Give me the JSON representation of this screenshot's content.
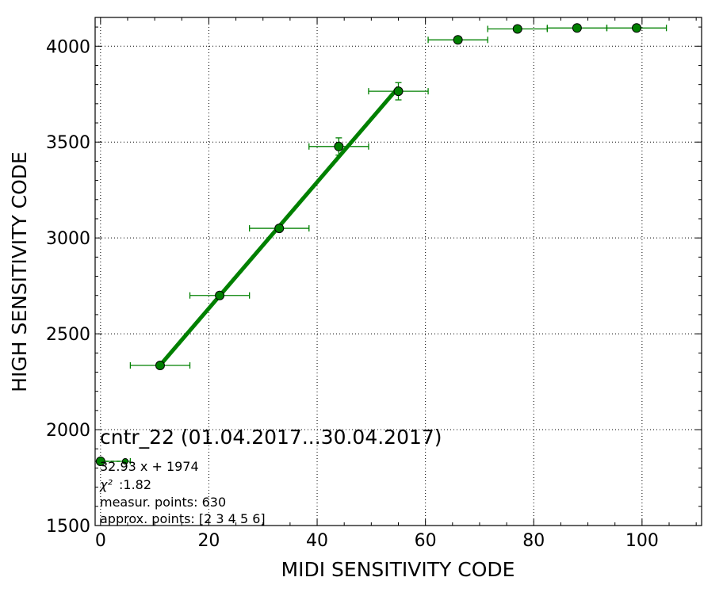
{
  "chart_data": {
    "type": "scatter",
    "xlabel": "MIDI SENSITIVITY CODE",
    "ylabel": "HIGH SENSITIVITY CODE",
    "xlim": [
      -1,
      111
    ],
    "ylim": [
      1500,
      4150
    ],
    "xticks": [
      0,
      20,
      40,
      60,
      80,
      100
    ],
    "yticks": [
      1500,
      2000,
      2500,
      3000,
      3500,
      4000
    ],
    "grid": true,
    "colors": {
      "series": "#008000",
      "marker_edge": "#000000"
    },
    "points": [
      {
        "x": 0,
        "y": 1835,
        "xerr": 5.5,
        "yerr": 0
      },
      {
        "x": 11,
        "y": 2335,
        "xerr": 5.5,
        "yerr": 0
      },
      {
        "x": 22,
        "y": 2700,
        "xerr": 5.5,
        "yerr": 0
      },
      {
        "x": 33,
        "y": 3050,
        "xerr": 5.5,
        "yerr": 0
      },
      {
        "x": 44,
        "y": 3477,
        "xerr": 5.5,
        "yerr": 45
      },
      {
        "x": 55,
        "y": 3765,
        "xerr": 5.5,
        "yerr": 45
      },
      {
        "x": 66,
        "y": 4033,
        "xerr": 5.5,
        "yerr": 0
      },
      {
        "x": 77,
        "y": 4090,
        "xerr": 5.5,
        "yerr": 0
      },
      {
        "x": 88,
        "y": 4095,
        "xerr": 5.5,
        "yerr": 0
      },
      {
        "x": 99,
        "y": 4095,
        "xerr": 5.5,
        "yerr": 0
      }
    ],
    "fit": {
      "slope": 32.93,
      "intercept": 1974,
      "x_range": [
        11,
        55
      ]
    },
    "annotations": {
      "title": "cntr_22 (01.04.2017...30.04.2017)",
      "equation": "32.93 x + 1974",
      "chi2_symbol": "χ²",
      "chi2_value": ":1.82",
      "measured": "measur. points: 630",
      "approx": "approx. points: [2 3 4 5 6]"
    }
  }
}
